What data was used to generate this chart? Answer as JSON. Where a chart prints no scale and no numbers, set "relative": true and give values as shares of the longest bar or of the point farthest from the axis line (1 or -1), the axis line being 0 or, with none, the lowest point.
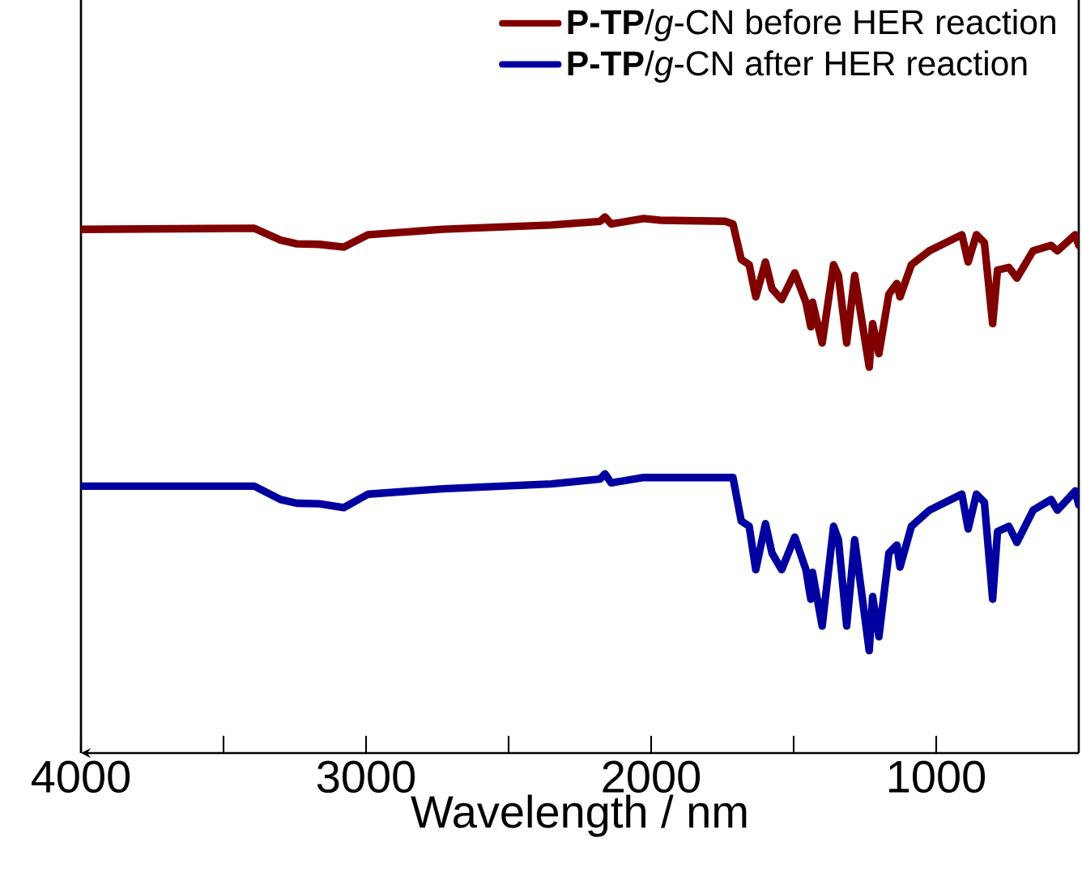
{
  "chart_data": {
    "type": "line",
    "relative": true,
    "xlabel": "Wavelength / nm",
    "xlim": [
      4000,
      500
    ],
    "xticks": [
      4000,
      {
        "value": 3500,
        "label": null
      },
      3000,
      {
        "value": 2500,
        "label": null
      },
      2000,
      {
        "value": 1500,
        "label": null
      },
      1000
    ],
    "tick_labels": "x",
    "legend": "top right",
    "line_style": "solid",
    "marker": "none",
    "x": [
      4000,
      3392,
      3300,
      3243,
      3164,
      3078,
      2993,
      2731,
      2350,
      2179,
      2162,
      2140,
      2026,
      1969,
      1741,
      1713,
      1684,
      1656,
      1633,
      1599,
      1576,
      1542,
      1496,
      1457,
      1440,
      1434,
      1400,
      1360,
      1343,
      1314,
      1286,
      1235,
      1223,
      1201,
      1166,
      1138,
      1127,
      1087,
      1024,
      910,
      888,
      859,
      831,
      802,
      785,
      745,
      717,
      660,
      597,
      575,
      512,
      500
    ],
    "series": [
      {
        "name": "**P-TP**/*g*-CN before HER reaction",
        "color": "#800000",
        "values": [
          0.977,
          0.979,
          0.957,
          0.95,
          0.949,
          0.944,
          0.967,
          0.977,
          0.985,
          0.992,
          1.0,
          0.987,
          0.997,
          0.994,
          0.992,
          0.987,
          0.921,
          0.911,
          0.851,
          0.916,
          0.866,
          0.846,
          0.896,
          0.841,
          0.795,
          0.841,
          0.765,
          0.911,
          0.891,
          0.765,
          0.891,
          0.72,
          0.801,
          0.745,
          0.856,
          0.876,
          0.851,
          0.911,
          0.937,
          0.967,
          0.916,
          0.967,
          0.952,
          0.801,
          0.901,
          0.906,
          0.886,
          0.937,
          0.947,
          0.937,
          0.967,
          0.947
        ]
      },
      {
        "name": "**P-TP**/*g*-CN after HER reaction",
        "color": "#0000a0",
        "values": [
          0.498,
          0.498,
          0.473,
          0.466,
          0.465,
          0.458,
          0.483,
          0.493,
          0.502,
          0.511,
          0.521,
          0.504,
          0.514,
          0.514,
          0.514,
          0.514,
          0.433,
          0.423,
          0.342,
          0.428,
          0.373,
          0.342,
          0.403,
          0.342,
          0.287,
          0.337,
          0.237,
          0.423,
          0.398,
          0.237,
          0.398,
          0.191,
          0.292,
          0.217,
          0.373,
          0.388,
          0.347,
          0.423,
          0.453,
          0.483,
          0.418,
          0.483,
          0.468,
          0.287,
          0.413,
          0.423,
          0.393,
          0.453,
          0.473,
          0.453,
          0.489,
          0.463
        ]
      }
    ]
  }
}
